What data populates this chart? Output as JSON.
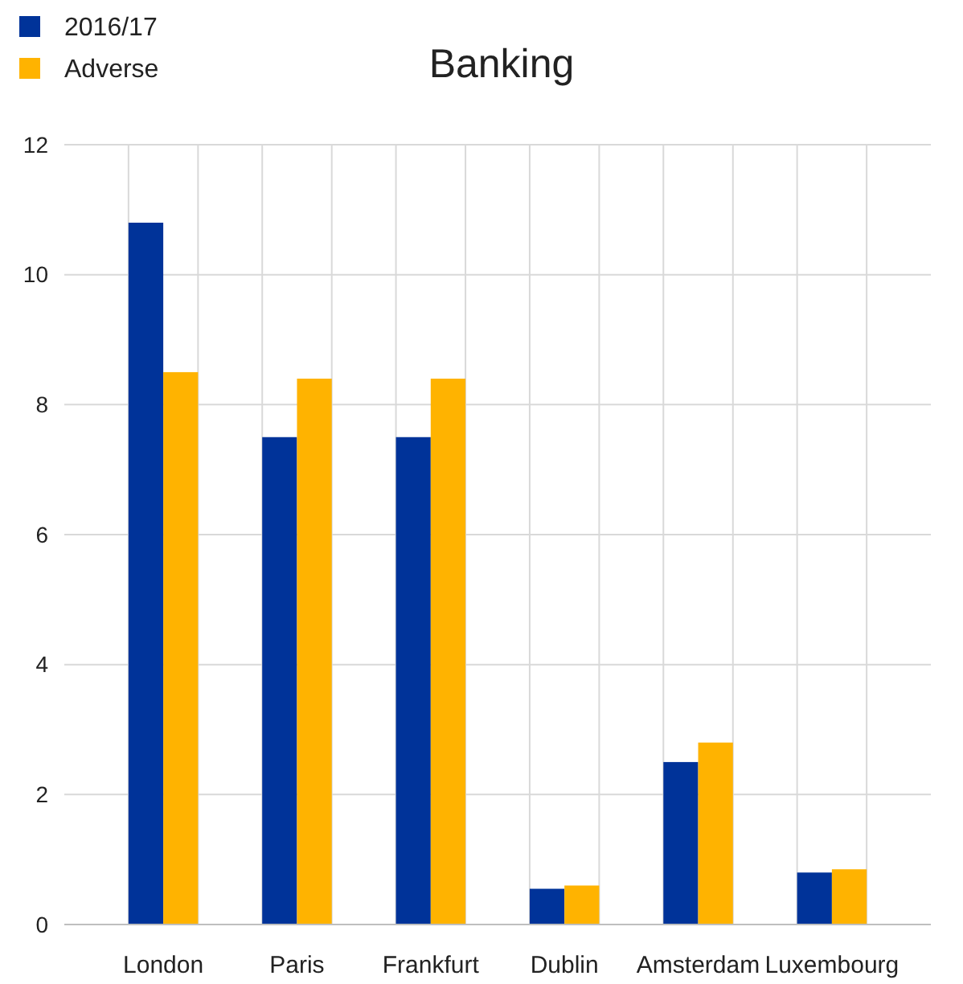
{
  "chart_data": {
    "type": "bar",
    "title": "Banking",
    "categories": [
      "London",
      "Paris",
      "Frankfurt",
      "Dublin",
      "Amsterdam",
      "Luxembourg"
    ],
    "series": [
      {
        "name": "2016/17",
        "color": "#003399",
        "values": [
          10.8,
          7.5,
          7.5,
          0.55,
          2.5,
          0.8
        ]
      },
      {
        "name": "Adverse",
        "color": "#ffb300",
        "values": [
          8.5,
          8.4,
          8.4,
          0.6,
          2.8,
          0.85
        ]
      }
    ],
    "ylim": [
      0,
      12
    ],
    "yticks": [
      0,
      2,
      4,
      6,
      8,
      10,
      12
    ],
    "grid": true,
    "legend": "top left"
  }
}
